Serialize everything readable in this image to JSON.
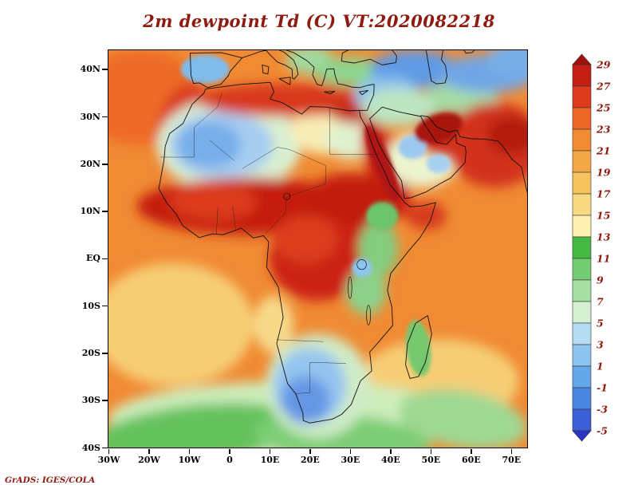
{
  "title": "2m dewpoint Td (C) VT:2020082218",
  "stamp": "GrADS: IGES/COLA",
  "colors": {
    "annotation": "#8e1a10",
    "axis_text": "#000000",
    "frame": "#000000",
    "ocean_base": "#f08a33",
    "coastline": "#111111",
    "border": "#222222"
  },
  "axes": {
    "lat_ticks": [
      {
        "label": "40N",
        "value": 40
      },
      {
        "label": "30N",
        "value": 30
      },
      {
        "label": "20N",
        "value": 20
      },
      {
        "label": "10N",
        "value": 10
      },
      {
        "label": "EQ",
        "value": 0
      },
      {
        "label": "10S",
        "value": -10
      },
      {
        "label": "20S",
        "value": -20
      },
      {
        "label": "30S",
        "value": -30
      },
      {
        "label": "40S",
        "value": -40
      }
    ],
    "lon_ticks": [
      {
        "label": "30W",
        "value": -30
      },
      {
        "label": "20W",
        "value": -20
      },
      {
        "label": "10W",
        "value": -10
      },
      {
        "label": "0",
        "value": 0
      },
      {
        "label": "10E",
        "value": 10
      },
      {
        "label": "20E",
        "value": 20
      },
      {
        "label": "30E",
        "value": 30
      },
      {
        "label": "40E",
        "value": 40
      },
      {
        "label": "50E",
        "value": 50
      },
      {
        "label": "60E",
        "value": 60
      },
      {
        "label": "70E",
        "value": 70
      }
    ],
    "lon_range": [
      -30,
      74
    ],
    "lat_range": [
      -40,
      44
    ]
  },
  "colorbar": {
    "labels_top_to_bottom": [
      "29",
      "27",
      "25",
      "23",
      "21",
      "19",
      "17",
      "15",
      "13",
      "11",
      "9",
      "7",
      "5",
      "3",
      "1",
      "-1",
      "-3",
      "-5"
    ],
    "colors_top_to_bottom": [
      "#a01010",
      "#c41f14",
      "#dd3a1e",
      "#ed6726",
      "#f08a33",
      "#f3a747",
      "#f6c35e",
      "#f9da83",
      "#fcf0b2",
      "#44ba44",
      "#74cc74",
      "#a6e0a4",
      "#d5f1d2",
      "#b4ddf4",
      "#8cc6f0",
      "#65a8e8",
      "#4b86e0",
      "#3c5fd8",
      "#2b35c8"
    ]
  },
  "chart_data": {
    "type": "heatmap",
    "subtype": "filled-contour-weather-map",
    "title": "2m dewpoint Td (C) VT:2020082218",
    "variable": "2 m dewpoint temperature",
    "units": "C",
    "valid_time": "2020082218",
    "projection": "latlon",
    "lon_range": [
      -30,
      74
    ],
    "lat_range": [
      -40,
      44
    ],
    "contour_levels": [
      -5,
      -3,
      -1,
      1,
      3,
      5,
      7,
      9,
      11,
      13,
      15,
      17,
      19,
      21,
      23,
      25,
      27,
      29
    ],
    "palette_top_to_bottom": [
      "#a01010",
      "#c41f14",
      "#dd3a1e",
      "#ed6726",
      "#f08a33",
      "#f3a747",
      "#f6c35e",
      "#f9da83",
      "#fcf0b2",
      "#44ba44",
      "#74cc74",
      "#a6e0a4",
      "#d5f1d2",
      "#b4ddf4",
      "#8cc6f0",
      "#65a8e8",
      "#4b86e0",
      "#3c5fd8",
      "#2b35c8"
    ],
    "legend_position": "right-colorbar",
    "background_value_c": "21 to 23 (open ocean)",
    "regions": [
      {
        "name": "north-atlantic-warm",
        "lon": -22,
        "lat": 34,
        "rx": 16,
        "ry": 10,
        "rot": 0,
        "color": "#ee6b28",
        "soft": true,
        "td_c": "23 to 25"
      },
      {
        "name": "subtropical-atlantic-sand",
        "lon": -14,
        "lat": -14,
        "rx": 20,
        "ry": 13,
        "rot": 0,
        "color": "#f6cd74",
        "soft": true,
        "td_c": "15 to 17"
      },
      {
        "name": "south-indian-sand",
        "lon": 52,
        "lat": -26,
        "rx": 20,
        "ry": 9,
        "rot": 0,
        "color": "#f6cd74",
        "soft": true,
        "td_c": "15 to 17"
      },
      {
        "name": "southern-ocean-pale-green",
        "lon": 15,
        "lat": -34,
        "rx": 45,
        "ry": 8,
        "rot": 0,
        "color": "#cdedbc",
        "soft": true,
        "td_c": "11 to 13"
      },
      {
        "name": "southern-ocean-green-west",
        "lon": -8,
        "lat": -37,
        "rx": 26,
        "ry": 6,
        "rot": -5,
        "color": "#63c25c",
        "soft": true,
        "td_c": "9 to 11"
      },
      {
        "name": "southern-ocean-green-center",
        "lon": 28,
        "lat": -38,
        "rx": 22,
        "ry": 5,
        "rot": 3,
        "color": "#7ccd74",
        "soft": true,
        "td_c": "9 to 11"
      },
      {
        "name": "southern-ocean-green-east",
        "lon": 58,
        "lat": -34,
        "rx": 16,
        "ry": 6,
        "rot": 8,
        "color": "#9ed892",
        "soft": true,
        "td_c": "11 to 13"
      },
      {
        "name": "angola-coast-sand",
        "lon": 11,
        "lat": -14,
        "rx": 5,
        "ry": 6,
        "rot": 0,
        "color": "#f7d98a",
        "soft": true,
        "td_c": "15 to 17"
      },
      {
        "name": "morocco-coast-red",
        "lon": -11,
        "lat": 27,
        "rx": 7,
        "ry": 10,
        "rot": 15,
        "color": "#d93a20",
        "soft": true,
        "td_c": "25 to 27"
      },
      {
        "name": "sahara-dry-fringe",
        "lon": 0,
        "lat": 24,
        "rx": 18,
        "ry": 10,
        "rot": 0,
        "color": "#d9efd0",
        "soft": true,
        "td_c": "7 to 9"
      },
      {
        "name": "sahara-dry-light",
        "lon": -2,
        "lat": 24,
        "rx": 13,
        "ry": 7,
        "rot": 0,
        "color": "#a6cdf1",
        "soft": true,
        "td_c": "1 to 3"
      },
      {
        "name": "sahara-dry-core",
        "lon": -5,
        "lat": 24,
        "rx": 8,
        "ry": 5,
        "rot": 0,
        "color": "#78aee9",
        "soft": true,
        "td_c": "-1 to 1"
      },
      {
        "name": "libya-egypt-pale",
        "lon": 24,
        "lat": 27,
        "rx": 9,
        "ry": 5,
        "rot": 0,
        "color": "#f7edb6",
        "soft": true,
        "td_c": "13 to 15"
      },
      {
        "name": "egypt-pale-green",
        "lon": 30,
        "lat": 25,
        "rx": 6,
        "ry": 4,
        "rot": 0,
        "color": "#dff2cf",
        "soft": true,
        "td_c": "7 to 9"
      },
      {
        "name": "mediterranean-coast-red",
        "lon": 14,
        "lat": 33.5,
        "rx": 22,
        "ry": 3.5,
        "rot": 0,
        "color": "#d8381f",
        "soft": true,
        "td_c": "25 to 27"
      },
      {
        "name": "nile-delta-red",
        "lon": 32,
        "lat": 31,
        "rx": 7,
        "ry": 2.5,
        "rot": 0,
        "color": "#c62a16",
        "soft": true,
        "td_c": "27 to 29"
      },
      {
        "name": "iberia-cool",
        "lon": -6,
        "lat": 40,
        "rx": 6,
        "ry": 3,
        "rot": 0,
        "color": "#7fbceb",
        "soft": false,
        "td_c": "1 to 3"
      },
      {
        "name": "balkans-green",
        "lon": 20,
        "lat": 42,
        "rx": 6,
        "ry": 3,
        "rot": 0,
        "color": "#a0daa0",
        "soft": true,
        "td_c": "9 to 11"
      },
      {
        "name": "anatolia-green",
        "lon": 30,
        "lat": 39.5,
        "rx": 9,
        "ry": 3,
        "rot": 0,
        "color": "#8fd58f",
        "soft": true,
        "td_c": "9 to 11"
      },
      {
        "name": "iran-plateau-green",
        "lon": 57,
        "lat": 33,
        "rx": 10,
        "ry": 4,
        "rot": 0,
        "color": "#a5dba5",
        "soft": true,
        "td_c": "7 to 9"
      },
      {
        "name": "caucasus-caspian-cool",
        "lon": 46,
        "lat": 40,
        "rx": 11,
        "ry": 4,
        "rot": 0,
        "color": "#5e9ae5",
        "soft": true,
        "td_c": "-1 to 1"
      },
      {
        "name": "central-asia-cool",
        "lon": 64,
        "lat": 39,
        "rx": 12,
        "ry": 4,
        "rot": 0,
        "color": "#6fa6e6",
        "soft": true,
        "td_c": "1 to 3"
      },
      {
        "name": "top-right-cool",
        "lon": 72,
        "lat": 42,
        "rx": 8,
        "ry": 4,
        "rot": 0,
        "color": "#77aee8",
        "soft": true,
        "td_c": "1 to 3"
      },
      {
        "name": "levant-cool",
        "lon": 39,
        "lat": 34.5,
        "rx": 8,
        "ry": 4,
        "rot": 0,
        "color": "#8fc2ee",
        "soft": true,
        "td_c": "1 to 3"
      },
      {
        "name": "iraq-green-fringe",
        "lon": 42,
        "lat": 32,
        "rx": 9,
        "ry": 4,
        "rot": 0,
        "color": "#bce6c2",
        "soft": true,
        "td_c": "7 to 9"
      },
      {
        "name": "red-sea-halo",
        "lon": 39,
        "lat": 19,
        "rx": 4.5,
        "ry": 11,
        "rot": -25,
        "color": "#cc2818",
        "soft": true,
        "td_c": "27 to 29"
      },
      {
        "name": "red-sea-core",
        "lon": 38,
        "lat": 20,
        "rx": 2.2,
        "ry": 9,
        "rot": -25,
        "color": "#b01812",
        "soft": false,
        "td_c": "over 29"
      },
      {
        "name": "arabia-interior-pale",
        "lon": 48,
        "lat": 21,
        "rx": 9,
        "ry": 6,
        "rot": 0,
        "color": "#ecf4cf",
        "soft": true,
        "td_c": "9 to 11"
      },
      {
        "name": "arabia-cool-spot-west",
        "lon": 45.5,
        "lat": 23.5,
        "rx": 3.5,
        "ry": 2.5,
        "rot": 0,
        "color": "#9cc8f0",
        "soft": false,
        "td_c": "1 to 3"
      },
      {
        "name": "arabia-cool-spot-east",
        "lon": 52,
        "lat": 20,
        "rx": 3,
        "ry": 2,
        "rot": 0,
        "color": "#a8d0f0",
        "soft": false,
        "td_c": "3 to 5"
      },
      {
        "name": "persian-gulf-halo",
        "lon": 55,
        "lat": 26,
        "rx": 9,
        "ry": 5,
        "rot": 0,
        "color": "#ce2a16",
        "soft": true,
        "td_c": "27 to 29"
      },
      {
        "name": "persian-gulf-extreme",
        "lon": 52,
        "lat": 27.5,
        "rx": 6,
        "ry": 3,
        "rot": -15,
        "color": "#a81410",
        "soft": false,
        "td_c": "over 29"
      },
      {
        "name": "arabian-sea-coast-red",
        "lon": 66,
        "lat": 24,
        "rx": 12,
        "ry": 9,
        "rot": 0,
        "color": "#d2301a",
        "soft": true,
        "td_c": "25 to 27"
      },
      {
        "name": "indus-dark-red",
        "lon": 70,
        "lat": 26,
        "rx": 6,
        "ry": 4,
        "rot": 0,
        "color": "#b31b10",
        "soft": true,
        "td_c": "27 to 29"
      },
      {
        "name": "sahel-moist-band-west",
        "lon": 5,
        "lat": 11,
        "rx": 28,
        "ry": 6,
        "rot": 0,
        "color": "#c51f10",
        "soft": true,
        "td_c": "27 to 29"
      },
      {
        "name": "sahel-moist-band-east",
        "lon": 30,
        "lat": 11,
        "rx": 12,
        "ry": 7,
        "rot": 0,
        "color": "#c21e10",
        "soft": true,
        "td_c": "27 to 29"
      },
      {
        "name": "west-africa-bright-red",
        "lon": -4,
        "lat": 12,
        "rx": 11,
        "ry": 4,
        "rot": 0,
        "color": "#dc3a1c",
        "soft": true,
        "td_c": "25 to 27"
      },
      {
        "name": "congo-basin-moist",
        "lon": 22,
        "lat": 0,
        "rx": 12,
        "ry": 9,
        "rot": 0,
        "color": "#cc2414",
        "soft": true,
        "td_c": "27 to 29"
      },
      {
        "name": "congo-bright",
        "lon": 19,
        "lat": 4,
        "rx": 8,
        "ry": 5,
        "rot": 0,
        "color": "#dc3c1c",
        "soft": true,
        "td_c": "25 to 27"
      },
      {
        "name": "gulf-of-aden-red",
        "lon": 49,
        "lat": 9,
        "rx": 5,
        "ry": 3,
        "rot": 0,
        "color": "#d63a1e",
        "soft": true,
        "td_c": "25 to 27"
      },
      {
        "name": "ethiopia-highlands-green",
        "lon": 38,
        "lat": 9,
        "rx": 4,
        "ry": 3,
        "rot": 0,
        "color": "#6cc46c",
        "soft": false,
        "td_c": "9 to 11"
      },
      {
        "name": "east-africa-highlands-green",
        "lon": 37,
        "lat": 2,
        "rx": 5,
        "ry": 6,
        "rot": 0,
        "color": "#84cc7e",
        "soft": true,
        "td_c": "9 to 11"
      },
      {
        "name": "lake-victoria-cool",
        "lon": 33,
        "lat": -2,
        "rx": 2.5,
        "ry": 2,
        "rot": 0,
        "color": "#8cc6f0",
        "soft": false,
        "td_c": "3 to 5"
      },
      {
        "name": "tanzania-green",
        "lon": 34,
        "lat": -7,
        "rx": 5,
        "ry": 5,
        "rot": 0,
        "color": "#8cd08a",
        "soft": true,
        "td_c": "11 to 13"
      },
      {
        "name": "southern-africa-pale-ring",
        "lon": 22,
        "lat": -27,
        "rx": 13,
        "ry": 11,
        "rot": 0,
        "color": "#cfebc6",
        "soft": true,
        "td_c": "7 to 9"
      },
      {
        "name": "southern-africa-dry",
        "lon": 20,
        "lat": -27,
        "rx": 9,
        "ry": 8,
        "rot": 0,
        "color": "#94c4f0",
        "soft": true,
        "td_c": "1 to 3"
      },
      {
        "name": "southern-africa-dry-core",
        "lon": 19,
        "lat": -30,
        "rx": 6,
        "ry": 5,
        "rot": 0,
        "color": "#6596e4",
        "soft": true,
        "td_c": "-3 to -1"
      },
      {
        "name": "madagascar-green",
        "lon": 47,
        "lat": -19,
        "rx": 3,
        "ry": 6,
        "rot": -10,
        "color": "#74c86e",
        "soft": false,
        "td_c": "9 to 11"
      }
    ]
  }
}
